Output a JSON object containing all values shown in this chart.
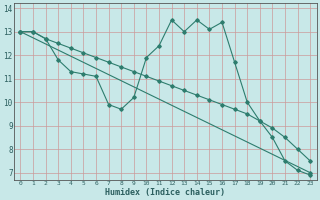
{
  "xlabel": "Humidex (Indice chaleur)",
  "bg_color": "#c8e8e8",
  "grid_color": "#cc9999",
  "line_color": "#2d7d6e",
  "xlim": [
    -0.5,
    23.5
  ],
  "ylim": [
    6.7,
    14.2
  ],
  "yticks": [
    7,
    8,
    9,
    10,
    11,
    12,
    13,
    14
  ],
  "xticks": [
    0,
    1,
    2,
    3,
    4,
    5,
    6,
    7,
    8,
    9,
    10,
    11,
    12,
    13,
    14,
    15,
    16,
    17,
    18,
    19,
    20,
    21,
    22,
    23
  ],
  "line1_x": [
    0,
    1,
    2,
    3,
    4,
    5,
    6,
    7,
    8,
    9,
    10,
    11,
    12,
    13,
    14,
    15,
    16,
    17,
    18,
    19,
    20,
    21,
    22,
    23
  ],
  "line1_y": [
    13.0,
    13.0,
    12.7,
    11.8,
    11.3,
    11.2,
    11.1,
    9.9,
    9.7,
    10.2,
    11.9,
    12.4,
    13.5,
    13.0,
    13.5,
    13.1,
    13.4,
    11.7,
    10.0,
    9.2,
    8.5,
    7.5,
    7.1,
    6.9
  ],
  "line2_x": [
    0,
    1,
    2,
    3,
    4,
    5,
    6,
    7,
    8,
    9,
    10,
    11,
    12,
    13,
    14,
    15,
    16,
    17,
    18,
    19,
    20,
    21,
    22,
    23
  ],
  "line2_y": [
    13.0,
    13.0,
    12.7,
    12.5,
    12.3,
    12.1,
    11.9,
    11.7,
    11.5,
    11.3,
    11.1,
    10.9,
    10.7,
    10.5,
    10.3,
    10.1,
    9.9,
    9.7,
    9.5,
    9.2,
    8.9,
    8.5,
    8.0,
    7.5
  ],
  "line3_x": [
    0,
    23
  ],
  "line3_y": [
    13.0,
    7.0
  ]
}
